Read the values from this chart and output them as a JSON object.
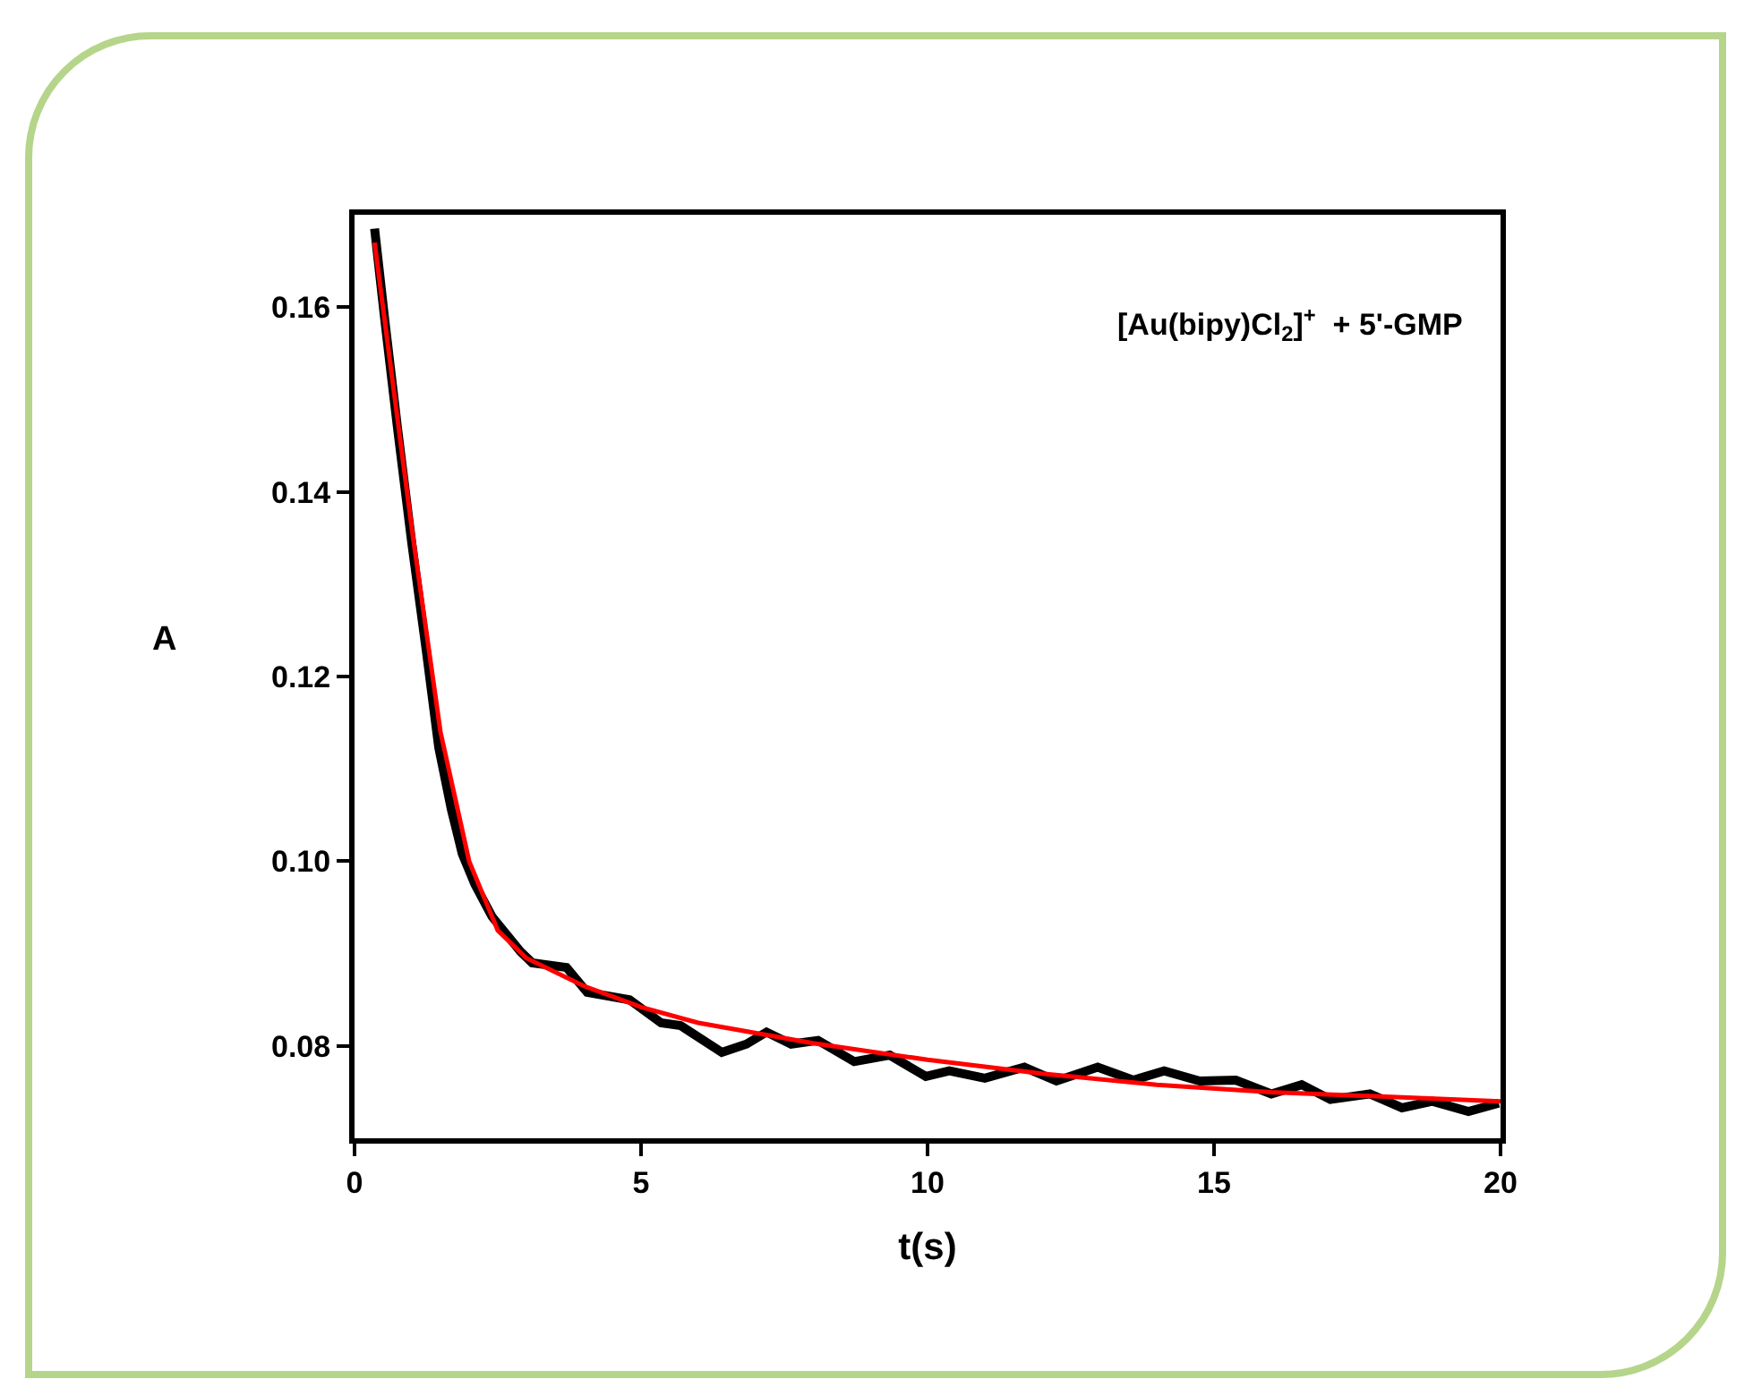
{
  "chart_data": {
    "type": "line",
    "xlabel": "t(s)",
    "ylabel": "A",
    "annotations": [
      "[Au(bipy)Cl$_{2}$]$^{+}$  + 5'-GMP"
    ],
    "xlim": [
      0,
      20
    ],
    "xticks": [
      0,
      5,
      10,
      15,
      20
    ],
    "ylim": [
      0.07,
      0.17
    ],
    "yticks": [
      {
        "value": 0.08,
        "label": "0.08"
      },
      {
        "value": 0.1,
        "label": "0.10"
      },
      {
        "value": 0.12,
        "label": "0.12"
      },
      {
        "value": 0.14,
        "label": "0.14"
      },
      {
        "value": 0.16,
        "label": "0.16"
      }
    ],
    "marker": "none",
    "line_style": "solid",
    "series": [
      {
        "color": "#000000",
        "x": [
          0.35,
          0.53,
          0.75,
          1.0,
          1.25,
          1.47,
          1.69,
          1.88,
          2.1,
          2.4,
          2.9,
          3.1,
          3.7,
          4.06,
          4.8,
          5.35,
          5.69,
          6.41,
          6.84,
          7.19,
          7.62,
          8.09,
          8.72,
          9.34,
          9.97,
          10.38,
          11.0,
          11.69,
          12.25,
          12.97,
          13.59,
          14.13,
          14.75,
          15.38,
          16.0,
          16.53,
          17.03,
          17.72,
          18.28,
          18.81,
          19.44,
          19.97
        ],
        "values": [
          0.1685,
          0.1585,
          0.1469,
          0.1344,
          0.1229,
          0.1123,
          0.1056,
          0.1008,
          0.0975,
          0.094,
          0.0902,
          0.089,
          0.0885,
          0.0858,
          0.085,
          0.0825,
          0.0822,
          0.0793,
          0.0802,
          0.0815,
          0.0802,
          0.0806,
          0.0783,
          0.079,
          0.0767,
          0.0773,
          0.0765,
          0.0777,
          0.0762,
          0.0777,
          0.0763,
          0.0773,
          0.0762,
          0.0763,
          0.0748,
          0.0758,
          0.0742,
          0.0748,
          0.0733,
          0.074,
          0.0729,
          0.0738
        ]
      },
      {
        "type": "line",
        "color": "#ff0000",
        "x": [
          0.35,
          0.6,
          1,
          1.5,
          2,
          2.5,
          3,
          4,
          5,
          6,
          8,
          10,
          12,
          14,
          16,
          18,
          20
        ],
        "values": [
          0.167,
          0.155,
          0.136,
          0.114,
          0.1,
          0.0925,
          0.0895,
          0.0865,
          0.0842,
          0.0825,
          0.0803,
          0.0785,
          0.077,
          0.0758,
          0.075,
          0.0745,
          0.074
        ]
      }
    ]
  }
}
